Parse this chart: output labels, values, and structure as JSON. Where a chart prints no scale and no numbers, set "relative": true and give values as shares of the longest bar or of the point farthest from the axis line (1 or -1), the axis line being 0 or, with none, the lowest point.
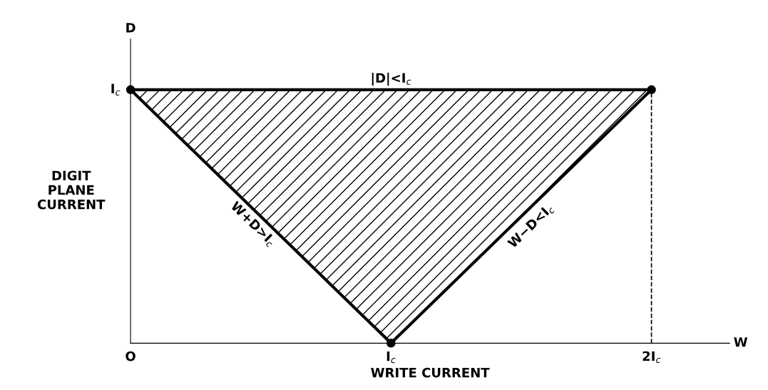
{
  "chart_data": {
    "type": "line",
    "xlabel": "WRITE CURRENT",
    "ylabel": "DIGIT\nPLANE\nCURRENT",
    "categories": [
      "O",
      "I$_{c}$",
      "2I$_{c}$"
    ],
    "relative": true,
    "series": [
      {
        "color": "#000000",
        "values": [
          1,
          0,
          1
        ],
        "lower": [
          1,
          0,
          1
        ],
        "upper": [
          1,
          1,
          1
        ],
        "marker": "circle"
      },
      {
        "color": "#000000",
        "values": [
          1,
          1,
          1
        ],
        "marker": "none"
      }
    ],
    "ref_lines": [
      {
        "axis": "x",
        "value": "2I$_{c}$",
        "label": null,
        "color": "#000000",
        "line_style": "dashed"
      }
    ],
    "annotations": [
      "D",
      "W",
      "I$_{c}$",
      "|D|<I$_{c}$",
      "W+D>I$_{c}$",
      "W−D<I$_{c}$"
    ],
    "grid": false
  }
}
